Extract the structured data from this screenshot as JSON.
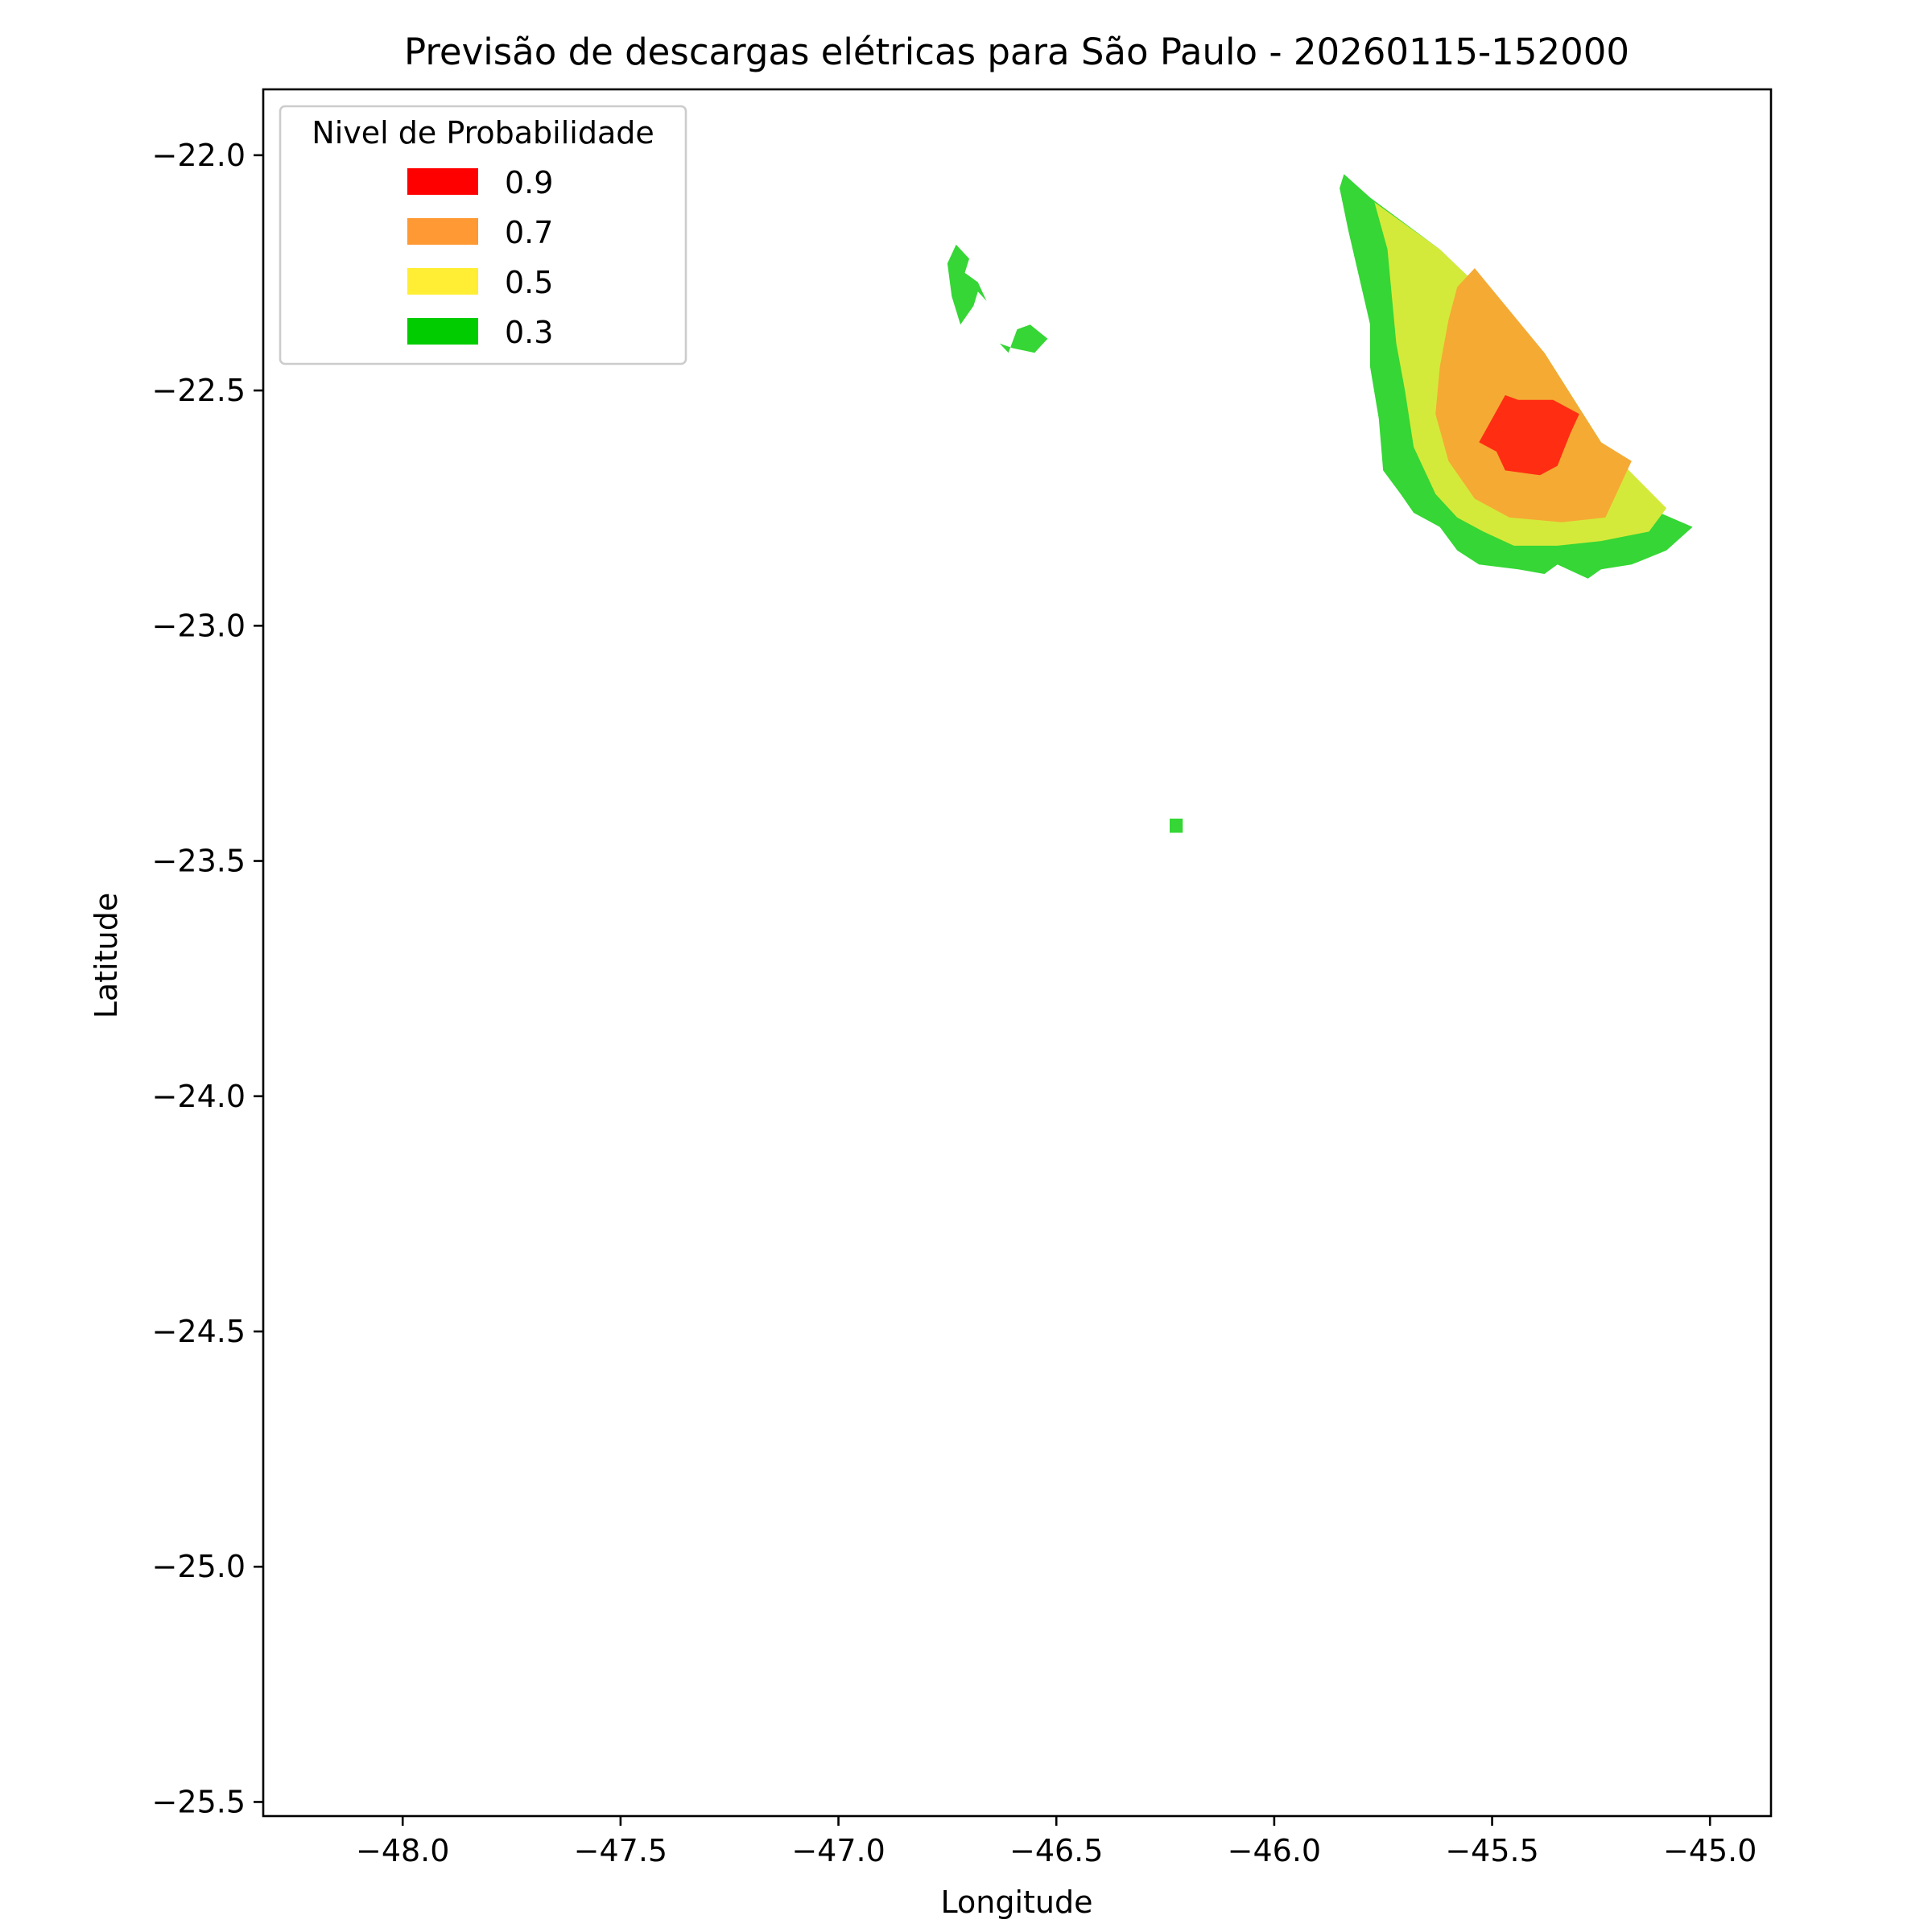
{
  "chart_data": {
    "type": "contour",
    "title": "Previsão de descargas elétricas para São Paulo - 20260115-152000",
    "xlabel": "Longitude",
    "ylabel": "Latitude",
    "xlim": [
      -48.32,
      -44.86
    ],
    "ylim": [
      -25.53,
      -21.86
    ],
    "xticks": [
      -48.0,
      -47.5,
      -47.0,
      -46.5,
      -46.0,
      -45.5,
      -45.0
    ],
    "xtick_labels": [
      "−48.0",
      "−47.5",
      "−47.0",
      "−46.5",
      "−46.0",
      "−45.5",
      "−45.0"
    ],
    "yticks": [
      -22.0,
      -22.5,
      -23.0,
      -23.5,
      -24.0,
      -24.5,
      -25.0,
      -25.5
    ],
    "ytick_labels": [
      "−22.0",
      "−22.5",
      "−23.0",
      "−23.5",
      "−24.0",
      "−24.5",
      "−25.0",
      "−25.5"
    ],
    "grid": false,
    "legend": {
      "title": "Nivel de Probabilidade",
      "position": "top-left",
      "entries": [
        {
          "label": "0.9",
          "color": "#ff0000"
        },
        {
          "label": "0.7",
          "color": "#ff9933"
        },
        {
          "label": "0.5",
          "color": "#ffee33"
        },
        {
          "label": "0.3",
          "color": "#00cc00"
        }
      ]
    },
    "regions": [
      {
        "level": 0.3,
        "color": "#35d635",
        "points": [
          [
            -45.84,
            -22.04
          ],
          [
            -45.78,
            -22.09
          ],
          [
            -45.62,
            -22.2
          ],
          [
            -45.53,
            -22.28
          ],
          [
            -45.38,
            -22.42
          ],
          [
            -45.25,
            -22.61
          ],
          [
            -45.14,
            -22.75
          ],
          [
            -45.04,
            -22.79
          ],
          [
            -45.1,
            -22.84
          ],
          [
            -45.18,
            -22.87
          ],
          [
            -45.25,
            -22.88
          ],
          [
            -45.28,
            -22.9
          ],
          [
            -45.35,
            -22.87
          ],
          [
            -45.38,
            -22.89
          ],
          [
            -45.44,
            -22.88
          ],
          [
            -45.53,
            -22.87
          ],
          [
            -45.58,
            -22.84
          ],
          [
            -45.62,
            -22.79
          ],
          [
            -45.68,
            -22.76
          ],
          [
            -45.71,
            -22.72
          ],
          [
            -45.75,
            -22.67
          ],
          [
            -45.76,
            -22.56
          ],
          [
            -45.78,
            -22.45
          ],
          [
            -45.78,
            -22.36
          ],
          [
            -45.8,
            -22.28
          ],
          [
            -45.83,
            -22.16
          ],
          [
            -45.85,
            -22.07
          ]
        ]
      },
      {
        "level": 0.5,
        "color": "#d4ea3a",
        "points": [
          [
            -45.77,
            -22.1
          ],
          [
            -45.62,
            -22.2
          ],
          [
            -45.53,
            -22.28
          ],
          [
            -45.38,
            -22.42
          ],
          [
            -45.25,
            -22.61
          ],
          [
            -45.1,
            -22.75
          ],
          [
            -45.14,
            -22.8
          ],
          [
            -45.25,
            -22.82
          ],
          [
            -45.35,
            -22.83
          ],
          [
            -45.45,
            -22.83
          ],
          [
            -45.52,
            -22.8
          ],
          [
            -45.58,
            -22.77
          ],
          [
            -45.63,
            -22.72
          ],
          [
            -45.68,
            -22.62
          ],
          [
            -45.7,
            -22.5
          ],
          [
            -45.72,
            -22.4
          ],
          [
            -45.73,
            -22.3
          ],
          [
            -45.74,
            -22.2
          ]
        ]
      },
      {
        "level": 0.7,
        "color": "#f5aa34",
        "points": [
          [
            -45.54,
            -22.24
          ],
          [
            -45.38,
            -22.42
          ],
          [
            -45.25,
            -22.61
          ],
          [
            -45.18,
            -22.65
          ],
          [
            -45.24,
            -22.77
          ],
          [
            -45.34,
            -22.78
          ],
          [
            -45.46,
            -22.77
          ],
          [
            -45.54,
            -22.73
          ],
          [
            -45.6,
            -22.65
          ],
          [
            -45.63,
            -22.55
          ],
          [
            -45.62,
            -22.45
          ],
          [
            -45.6,
            -22.35
          ],
          [
            -45.58,
            -22.28
          ]
        ]
      },
      {
        "level": 0.9,
        "color": "#ff2d12",
        "points": [
          [
            -45.47,
            -22.51
          ],
          [
            -45.44,
            -22.52
          ],
          [
            -45.36,
            -22.52
          ],
          [
            -45.3,
            -22.55
          ],
          [
            -45.32,
            -22.59
          ],
          [
            -45.35,
            -22.66
          ],
          [
            -45.39,
            -22.68
          ],
          [
            -45.47,
            -22.67
          ],
          [
            -45.49,
            -22.63
          ],
          [
            -45.53,
            -22.61
          ]
        ]
      },
      {
        "level": 0.3,
        "color": "#35d635",
        "points": [
          [
            -46.73,
            -22.19
          ],
          [
            -46.75,
            -22.23
          ],
          [
            -46.74,
            -22.3
          ],
          [
            -46.72,
            -22.36
          ],
          [
            -46.69,
            -22.32
          ],
          [
            -46.68,
            -22.29
          ],
          [
            -46.66,
            -22.31
          ],
          [
            -46.68,
            -22.27
          ],
          [
            -46.71,
            -22.25
          ],
          [
            -46.7,
            -22.22
          ]
        ]
      },
      {
        "level": 0.3,
        "color": "#35d635",
        "points": [
          [
            -46.63,
            -22.4
          ],
          [
            -46.61,
            -22.42
          ],
          [
            -46.59,
            -22.37
          ],
          [
            -46.56,
            -22.36
          ],
          [
            -46.52,
            -22.39
          ],
          [
            -46.55,
            -22.42
          ],
          [
            -46.6,
            -22.41
          ]
        ]
      },
      {
        "level": 0.3,
        "color": "#35d635",
        "points": [
          [
            -46.24,
            -23.41
          ],
          [
            -46.21,
            -23.41
          ],
          [
            -46.21,
            -23.44
          ],
          [
            -46.24,
            -23.44
          ]
        ]
      }
    ]
  }
}
